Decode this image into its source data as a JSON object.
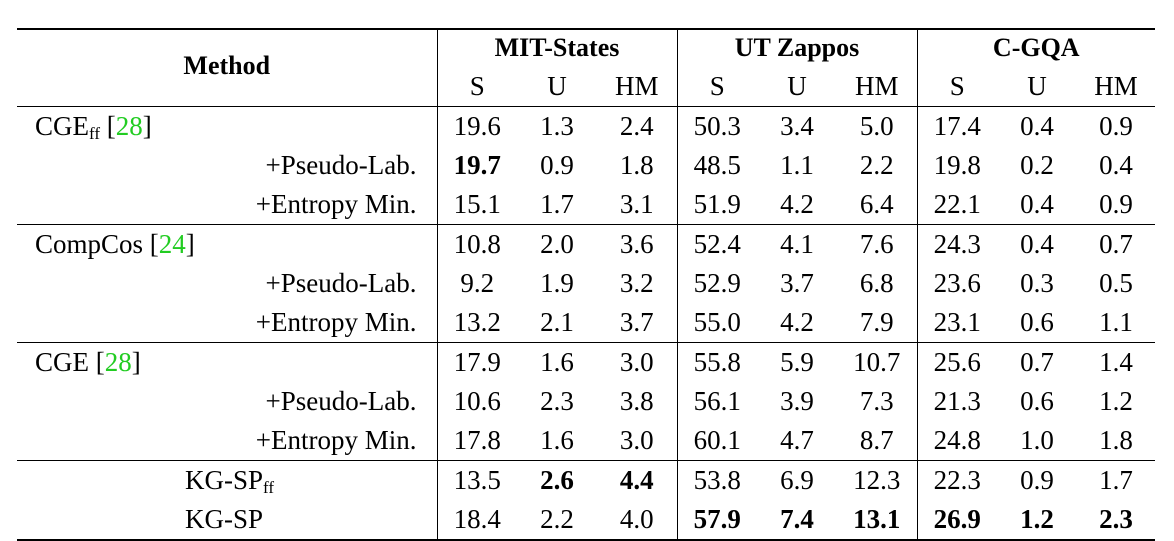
{
  "header": {
    "method": "Method",
    "groups": [
      "MIT-States",
      "UT Zappos",
      "C-GQA"
    ],
    "subcols": [
      "S",
      "U",
      "HM"
    ]
  },
  "rows": [
    {
      "name": "CGE",
      "sub": "ff",
      "cite": "28",
      "vals": [
        "19.6",
        "1.3",
        "2.4",
        "50.3",
        "3.4",
        "5.0",
        "17.4",
        "0.4",
        "0.9"
      ]
    },
    {
      "name": "+Pseudo-Lab.",
      "vals": [
        "19.7",
        "0.9",
        "1.8",
        "48.5",
        "1.1",
        "2.2",
        "19.8",
        "0.2",
        "0.4"
      ]
    },
    {
      "name": "+Entropy Min.",
      "vals": [
        "15.1",
        "1.7",
        "3.1",
        "51.9",
        "4.2",
        "6.4",
        "22.1",
        "0.4",
        "0.9"
      ]
    },
    {
      "name": "CompCos",
      "cite": "24",
      "vals": [
        "10.8",
        "2.0",
        "3.6",
        "52.4",
        "4.1",
        "7.6",
        "24.3",
        "0.4",
        "0.7"
      ]
    },
    {
      "name": "+Pseudo-Lab.",
      "vals": [
        "9.2",
        "1.9",
        "3.2",
        "52.9",
        "3.7",
        "6.8",
        "23.6",
        "0.3",
        "0.5"
      ]
    },
    {
      "name": "+Entropy Min.",
      "vals": [
        "13.2",
        "2.1",
        "3.7",
        "55.0",
        "4.2",
        "7.9",
        "23.1",
        "0.6",
        "1.1"
      ]
    },
    {
      "name": "CGE",
      "cite": "28",
      "vals": [
        "17.9",
        "1.6",
        "3.0",
        "55.8",
        "5.9",
        "10.7",
        "25.6",
        "0.7",
        "1.4"
      ]
    },
    {
      "name": "+Pseudo-Lab.",
      "vals": [
        "10.6",
        "2.3",
        "3.8",
        "56.1",
        "3.9",
        "7.3",
        "21.3",
        "0.6",
        "1.2"
      ]
    },
    {
      "name": "+Entropy Min.",
      "vals": [
        "17.8",
        "1.6",
        "3.0",
        "60.1",
        "4.7",
        "8.7",
        "24.8",
        "1.0",
        "1.8"
      ]
    },
    {
      "name": "KG-SP",
      "sub": "ff",
      "vals": [
        "13.5",
        "2.6",
        "4.4",
        "53.8",
        "6.9",
        "12.3",
        "22.3",
        "0.9",
        "1.7"
      ]
    },
    {
      "name": "KG-SP",
      "vals": [
        "18.4",
        "2.2",
        "4.0",
        "57.9",
        "7.4",
        "13.1",
        "26.9",
        "1.2",
        "2.3"
      ]
    }
  ]
}
